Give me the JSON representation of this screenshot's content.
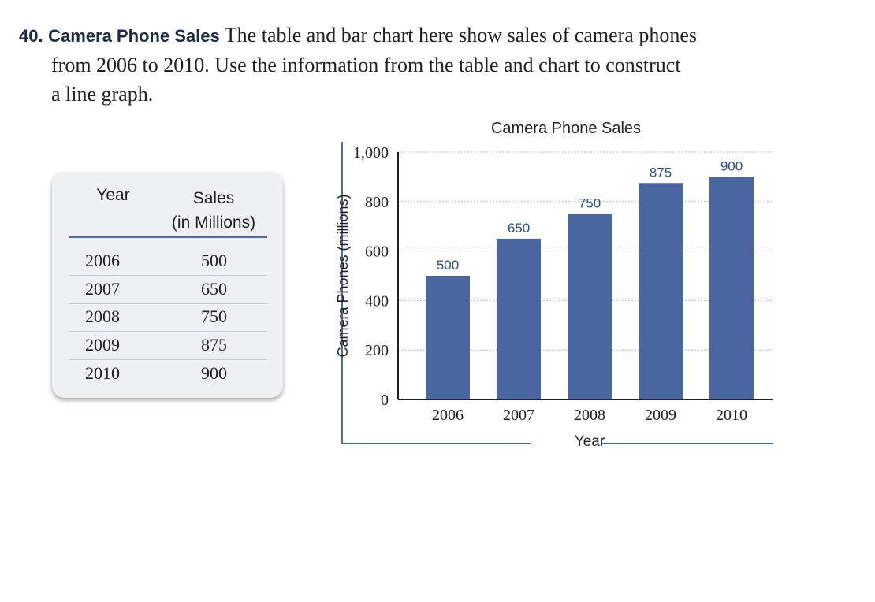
{
  "problem": {
    "number": "40.",
    "title": "Camera Phone Sales",
    "text_line1": "The table and bar chart here show sales of camera phones",
    "text_line2": "from 2006 to 2010. Use the information from the table and chart to construct",
    "text_line3": "a line graph."
  },
  "table": {
    "col_year": "Year",
    "col_sales_line1": "Sales",
    "col_sales_line2": "(in Millions)",
    "rows": [
      {
        "year": "2006",
        "sales": "500"
      },
      {
        "year": "2007",
        "sales": "650"
      },
      {
        "year": "2008",
        "sales": "750"
      },
      {
        "year": "2009",
        "sales": "875"
      },
      {
        "year": "2010",
        "sales": "900"
      }
    ]
  },
  "chart_data": {
    "type": "bar",
    "title": "Camera Phone Sales",
    "xlabel": "Year",
    "ylabel": "Camera Phones (millions)",
    "categories": [
      "2006",
      "2007",
      "2008",
      "2009",
      "2010"
    ],
    "values": [
      500,
      650,
      750,
      875,
      900
    ],
    "data_labels": [
      "500",
      "650",
      "750",
      "875",
      "900"
    ],
    "ylim": [
      0,
      1000
    ],
    "yticks": [
      0,
      200,
      400,
      600,
      800,
      1000
    ],
    "ytick_labels": [
      "0",
      "200",
      "400",
      "600",
      "800",
      "1,000"
    ],
    "grid": "horizontal dotted",
    "bar_color": "#4a66a0",
    "label_color": "#2b4f8c"
  }
}
